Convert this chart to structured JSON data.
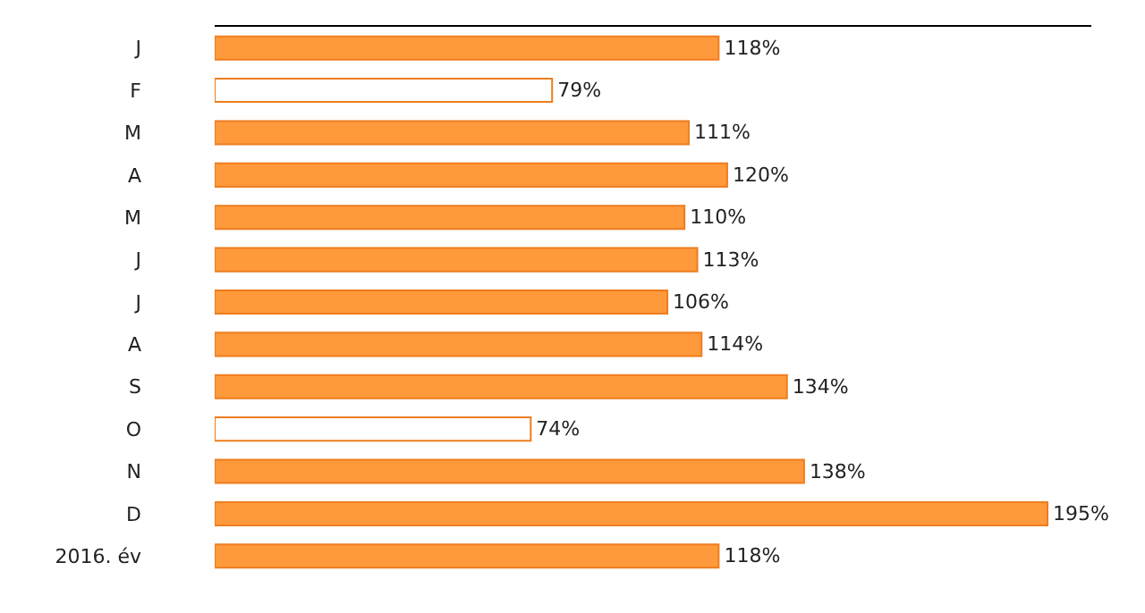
{
  "chart_data": {
    "type": "bar",
    "orientation": "horizontal",
    "categories": [
      "J",
      "F",
      "M",
      "A",
      "M",
      "J",
      "J",
      "A",
      "S",
      "O",
      "N",
      "D",
      "2016. év"
    ],
    "values": [
      118,
      79,
      111,
      120,
      110,
      113,
      106,
      114,
      134,
      74,
      138,
      195,
      118
    ],
    "value_labels": [
      "118%",
      "79%",
      "111%",
      "120%",
      "110%",
      "113%",
      "106%",
      "114%",
      "134%",
      "74%",
      "138%",
      "195%",
      "118%"
    ],
    "color": "#ee7d1e",
    "colors": [
      "#ff9a3c",
      "#ffffff",
      "#ff9a3c",
      "#ff9a3c",
      "#ff9a3c",
      "#ff9a3c",
      "#ff9a3c",
      "#ff9a3c",
      "#ff9a3c",
      "#ffffff",
      "#ff9a3c",
      "#ff9a3c",
      "#ff9a3c"
    ],
    "legend": false,
    "tick_labels": "y"
  }
}
